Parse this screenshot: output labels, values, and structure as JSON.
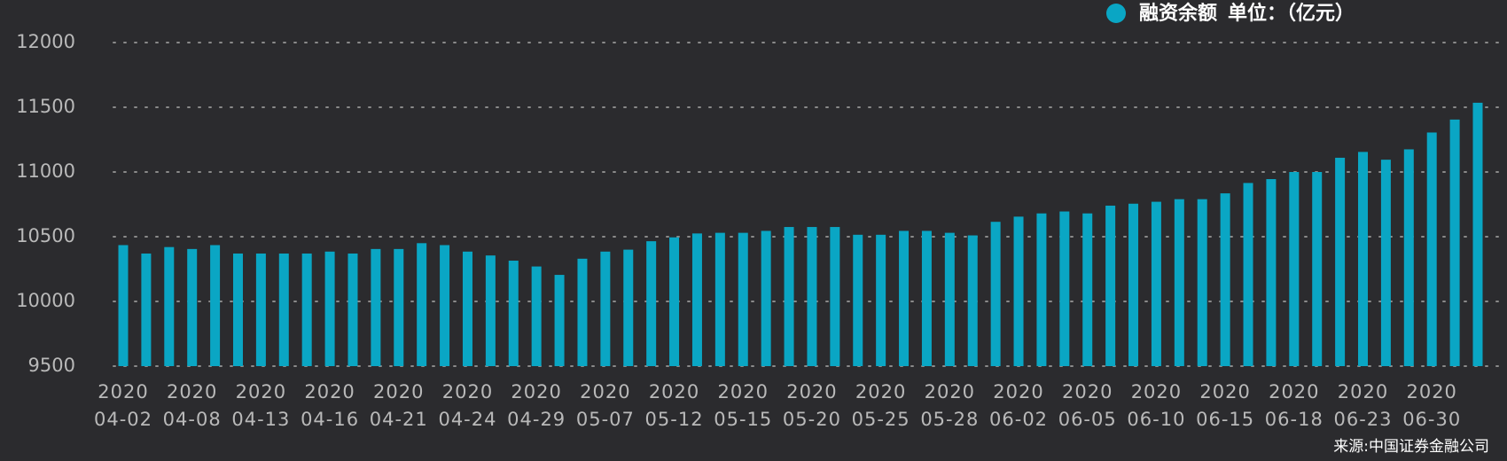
{
  "chart_data": {
    "type": "bar",
    "unit_label": "单位：（亿元）",
    "source": "来源:中国证券金融公司",
    "categories": [
      "2020\n04-02",
      null,
      null,
      "2020\n04-08",
      null,
      null,
      "2020\n04-13",
      null,
      null,
      "2020\n04-16",
      null,
      null,
      "2020\n04-21",
      null,
      null,
      "2020\n04-24",
      null,
      null,
      "2020\n04-29",
      null,
      null,
      "2020\n05-07",
      null,
      null,
      "2020\n05-12",
      null,
      null,
      "2020\n05-15",
      null,
      null,
      "2020\n05-20",
      null,
      null,
      "2020\n05-25",
      null,
      null,
      "2020\n05-28",
      null,
      null,
      "2020\n06-02",
      null,
      null,
      "2020\n06-05",
      null,
      null,
      "2020\n06-10",
      null,
      null,
      "2020\n06-15",
      null,
      null,
      "2020\n06-18",
      null,
      null,
      "2020\n06-23",
      null,
      null,
      "2020\n06-30",
      null,
      null
    ],
    "series": [
      {
        "name": "融资余额",
        "color": "#0aa6c4",
        "values": [
          10435,
          10370,
          10420,
          10405,
          10435,
          10370,
          10370,
          10370,
          10370,
          10385,
          10370,
          10405,
          10405,
          10450,
          10435,
          10385,
          10355,
          10315,
          10270,
          10205,
          10330,
          10385,
          10400,
          10465,
          10495,
          10525,
          10530,
          10530,
          10545,
          10575,
          10575,
          10575,
          10515,
          10515,
          10545,
          10545,
          10530,
          10510,
          10615,
          10655,
          10680,
          10695,
          10680,
          10740,
          10755,
          10770,
          10790,
          10790,
          10835,
          10915,
          10945,
          11000,
          11000,
          11110,
          11155,
          11095,
          11175,
          11305,
          11405,
          11535
        ]
      }
    ],
    "ylim": [
      9500,
      12000
    ],
    "yticks": [
      9500,
      10000,
      10500,
      11000,
      11500,
      12000
    ],
    "grid": true
  }
}
